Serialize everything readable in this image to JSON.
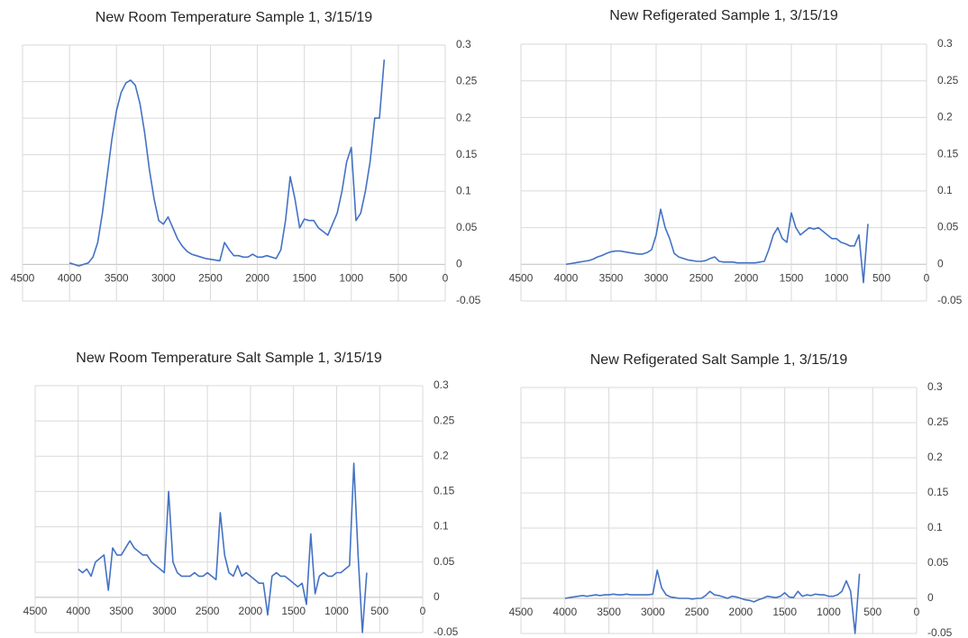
{
  "chart_data": [
    {
      "type": "line",
      "title": "New Room Temperature Sample 1, 3/15/19",
      "color": "#4472c4",
      "grid": true,
      "x": [
        4000,
        3950,
        3900,
        3850,
        3800,
        3750,
        3700,
        3650,
        3600,
        3550,
        3500,
        3450,
        3400,
        3350,
        3300,
        3250,
        3200,
        3150,
        3100,
        3050,
        3000,
        2950,
        2900,
        2850,
        2800,
        2750,
        2700,
        2650,
        2600,
        2550,
        2500,
        2450,
        2400,
        2350,
        2300,
        2250,
        2200,
        2150,
        2100,
        2050,
        2000,
        1950,
        1900,
        1850,
        1800,
        1750,
        1700,
        1650,
        1600,
        1550,
        1500,
        1450,
        1400,
        1350,
        1300,
        1250,
        1200,
        1150,
        1100,
        1050,
        1000,
        950,
        900,
        850,
        800,
        750,
        700,
        650
      ],
      "values": [
        0.002,
        0,
        -0.002,
        0,
        0.002,
        0.01,
        0.03,
        0.07,
        0.12,
        0.17,
        0.21,
        0.235,
        0.248,
        0.252,
        0.245,
        0.22,
        0.18,
        0.13,
        0.09,
        0.06,
        0.055,
        0.065,
        0.05,
        0.035,
        0.025,
        0.018,
        0.014,
        0.012,
        0.01,
        0.008,
        0.007,
        0.006,
        0.005,
        0.03,
        0.02,
        0.012,
        0.012,
        0.01,
        0.01,
        0.014,
        0.01,
        0.01,
        0.012,
        0.01,
        0.008,
        0.02,
        0.06,
        0.12,
        0.09,
        0.05,
        0.062,
        0.06,
        0.06,
        0.05,
        0.045,
        0.04,
        0.055,
        0.07,
        0.1,
        0.14,
        0.16,
        0.06,
        0.07,
        0.1,
        0.14,
        0.2,
        0.2,
        0.28
      ],
      "xlim": [
        4500,
        0
      ],
      "xticks": [
        4500,
        4000,
        3500,
        3000,
        2500,
        2000,
        1500,
        1000,
        500,
        0
      ],
      "ylim": [
        -0.05,
        0.3
      ],
      "yticks": [
        0.3,
        0.25,
        0.2,
        0.15,
        0.1,
        0.05,
        0,
        -0.05
      ]
    },
    {
      "type": "line",
      "title": "New Refigerated Sample 1, 3/15/19",
      "color": "#4472c4",
      "grid": true,
      "x": [
        4000,
        3950,
        3900,
        3850,
        3800,
        3750,
        3700,
        3650,
        3600,
        3550,
        3500,
        3450,
        3400,
        3350,
        3300,
        3250,
        3200,
        3150,
        3100,
        3050,
        3000,
        2950,
        2900,
        2850,
        2800,
        2750,
        2700,
        2650,
        2600,
        2550,
        2500,
        2450,
        2400,
        2350,
        2300,
        2250,
        2200,
        2150,
        2100,
        2050,
        2000,
        1950,
        1900,
        1850,
        1800,
        1750,
        1700,
        1650,
        1600,
        1550,
        1500,
        1450,
        1400,
        1350,
        1300,
        1250,
        1200,
        1150,
        1100,
        1050,
        1000,
        950,
        900,
        850,
        800,
        750,
        700,
        650
      ],
      "values": [
        0,
        0.001,
        0.002,
        0.003,
        0.004,
        0.005,
        0.007,
        0.01,
        0.012,
        0.015,
        0.017,
        0.018,
        0.018,
        0.017,
        0.016,
        0.015,
        0.014,
        0.014,
        0.016,
        0.02,
        0.04,
        0.075,
        0.05,
        0.035,
        0.015,
        0.01,
        0.008,
        0.006,
        0.005,
        0.004,
        0.004,
        0.005,
        0.008,
        0.01,
        0.004,
        0.003,
        0.003,
        0.003,
        0.002,
        0.002,
        0.002,
        0.002,
        0.002,
        0.003,
        0.004,
        0.02,
        0.04,
        0.05,
        0.035,
        0.03,
        0.07,
        0.05,
        0.04,
        0.045,
        0.05,
        0.048,
        0.05,
        0.045,
        0.04,
        0.035,
        0.035,
        0.03,
        0.028,
        0.025,
        0.025,
        0.04,
        -0.025,
        0.055
      ],
      "xlim": [
        4500,
        0
      ],
      "xticks": [
        4500,
        4000,
        3500,
        3000,
        2500,
        2000,
        1500,
        1000,
        500,
        0
      ],
      "ylim": [
        -0.05,
        0.3
      ],
      "yticks": [
        0.3,
        0.25,
        0.2,
        0.15,
        0.1,
        0.05,
        0,
        -0.05
      ]
    },
    {
      "type": "line",
      "title": "New Room Temperature Salt Sample 1, 3/15/19",
      "color": "#4472c4",
      "grid": true,
      "x": [
        4000,
        3950,
        3900,
        3850,
        3800,
        3750,
        3700,
        3650,
        3600,
        3550,
        3500,
        3450,
        3400,
        3350,
        3300,
        3250,
        3200,
        3150,
        3100,
        3050,
        3000,
        2950,
        2900,
        2850,
        2800,
        2750,
        2700,
        2650,
        2600,
        2550,
        2500,
        2450,
        2400,
        2350,
        2300,
        2250,
        2200,
        2150,
        2100,
        2050,
        2000,
        1950,
        1900,
        1850,
        1800,
        1750,
        1700,
        1650,
        1600,
        1550,
        1500,
        1450,
        1400,
        1350,
        1300,
        1250,
        1200,
        1150,
        1100,
        1050,
        1000,
        950,
        900,
        850,
        800,
        750,
        700,
        650
      ],
      "values": [
        0.04,
        0.035,
        0.04,
        0.03,
        0.05,
        0.055,
        0.06,
        0.01,
        0.07,
        0.06,
        0.06,
        0.07,
        0.08,
        0.07,
        0.065,
        0.06,
        0.06,
        0.05,
        0.045,
        0.04,
        0.035,
        0.15,
        0.05,
        0.035,
        0.03,
        0.03,
        0.03,
        0.035,
        0.03,
        0.03,
        0.035,
        0.03,
        0.025,
        0.12,
        0.06,
        0.035,
        0.03,
        0.045,
        0.03,
        0.035,
        0.03,
        0.025,
        0.02,
        0.02,
        -0.025,
        0.03,
        0.035,
        0.03,
        0.03,
        0.025,
        0.02,
        0.015,
        0.02,
        -0.01,
        0.09,
        0.005,
        0.03,
        0.035,
        0.03,
        0.03,
        0.035,
        0.035,
        0.04,
        0.045,
        0.19,
        0.06,
        -0.05,
        0.035
      ],
      "xlim": [
        4500,
        0
      ],
      "xticks": [
        4500,
        4000,
        3500,
        3000,
        2500,
        2000,
        1500,
        1000,
        500,
        0
      ],
      "ylim": [
        -0.05,
        0.3
      ],
      "yticks": [
        0.3,
        0.25,
        0.2,
        0.15,
        0.1,
        0.05,
        0,
        -0.05
      ]
    },
    {
      "type": "line",
      "title": "New Refigerated Salt Sample 1, 3/15/19",
      "color": "#4472c4",
      "grid": true,
      "x": [
        4000,
        3950,
        3900,
        3850,
        3800,
        3750,
        3700,
        3650,
        3600,
        3550,
        3500,
        3450,
        3400,
        3350,
        3300,
        3250,
        3200,
        3150,
        3100,
        3050,
        3000,
        2950,
        2900,
        2850,
        2800,
        2750,
        2700,
        2650,
        2600,
        2550,
        2500,
        2450,
        2400,
        2350,
        2300,
        2250,
        2200,
        2150,
        2100,
        2050,
        2000,
        1950,
        1900,
        1850,
        1800,
        1750,
        1700,
        1650,
        1600,
        1550,
        1500,
        1450,
        1400,
        1350,
        1300,
        1250,
        1200,
        1150,
        1100,
        1050,
        1000,
        950,
        900,
        850,
        800,
        750,
        700,
        650
      ],
      "values": [
        0,
        0.001,
        0.002,
        0.003,
        0.004,
        0.003,
        0.004,
        0.005,
        0.004,
        0.005,
        0.005,
        0.006,
        0.005,
        0.005,
        0.006,
        0.005,
        0.005,
        0.005,
        0.005,
        0.005,
        0.006,
        0.04,
        0.015,
        0.005,
        0.002,
        0.001,
        0,
        0,
        0,
        -0.001,
        0,
        0,
        0.004,
        0.01,
        0.005,
        0.004,
        0.002,
        0,
        0.003,
        0.002,
        0,
        -0.002,
        -0.003,
        -0.005,
        -0.002,
        0,
        0.003,
        0.002,
        0.001,
        0.003,
        0.008,
        0.002,
        0.001,
        0.01,
        0.003,
        0.005,
        0.004,
        0.006,
        0.005,
        0.005,
        0.003,
        0.003,
        0.005,
        0.01,
        0.025,
        0.01,
        -0.05,
        0.035
      ],
      "xlim": [
        4500,
        0
      ],
      "xticks": [
        4500,
        4000,
        3500,
        3000,
        2500,
        2000,
        1500,
        1000,
        500,
        0
      ],
      "ylim": [
        -0.05,
        0.3
      ],
      "yticks": [
        0.3,
        0.25,
        0.2,
        0.15,
        0.1,
        0.05,
        0,
        -0.05
      ]
    }
  ]
}
